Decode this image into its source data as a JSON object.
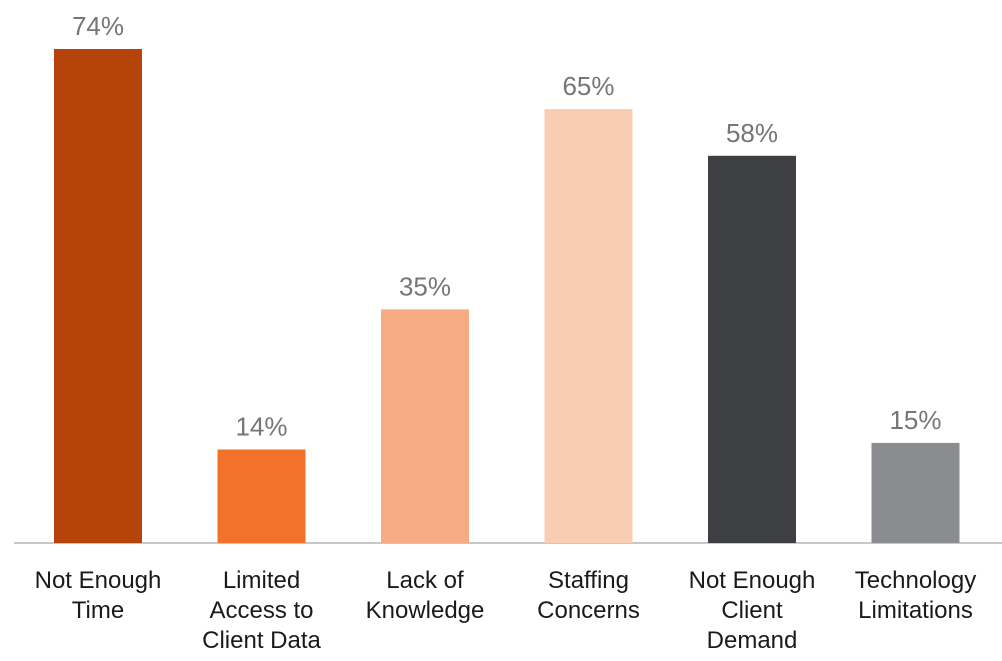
{
  "chart_data": {
    "type": "bar",
    "categories": [
      "Not Enough\nTime",
      "Limited\nAccess to\nClient Data",
      "Lack of\nKnowledge",
      "Staffing\nConcerns",
      "Not Enough\nClient\nDemand",
      "Technology\nLimitations"
    ],
    "values": [
      74,
      14,
      35,
      65,
      58,
      15
    ],
    "value_labels": [
      "74%",
      "14%",
      "35%",
      "65%",
      "58%",
      "15%"
    ],
    "unit": "%",
    "ylim": [
      0,
      74
    ],
    "grid": false,
    "legend": "none",
    "colors": [
      "#b6440a",
      "#f2712b",
      "#f7ab83",
      "#f9cdb1",
      "#3e3f42",
      "#8b8c8f"
    ],
    "axis_color": "#c8c8c8"
  }
}
